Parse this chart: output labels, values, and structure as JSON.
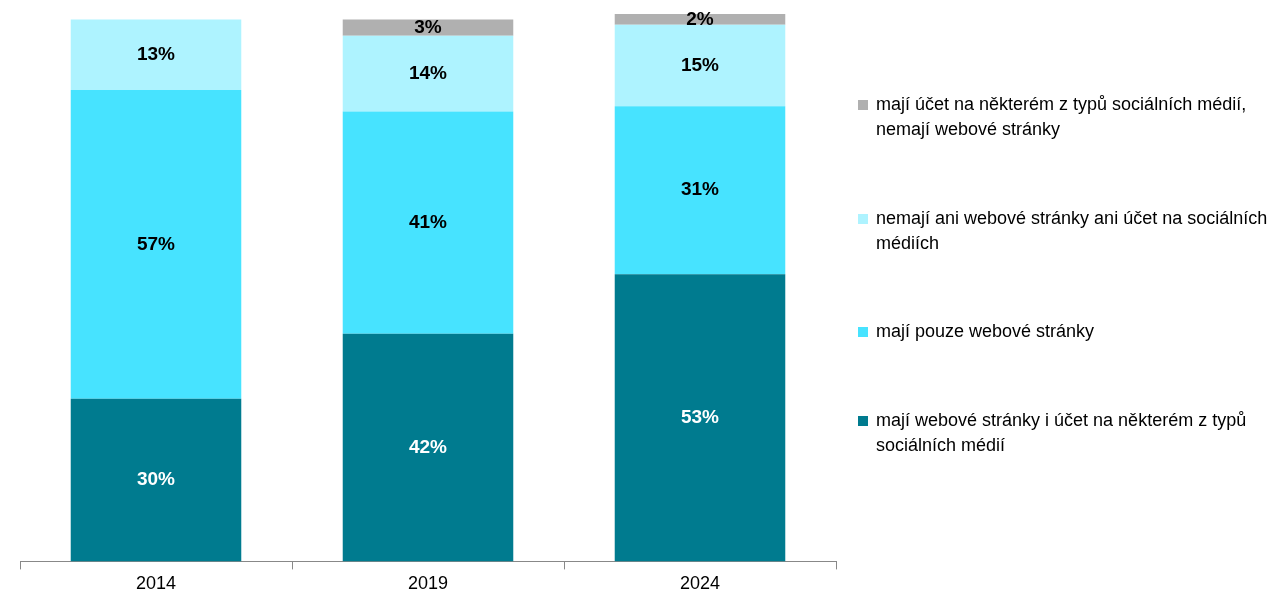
{
  "chart_data": {
    "type": "bar",
    "stacked": true,
    "relative": false,
    "categories": [
      "2014",
      "2019",
      "2024"
    ],
    "ylim": [
      0,
      101
    ],
    "legend": "right",
    "grid": false,
    "series": [
      {
        "name": "mají webové stránky i účet na některém z typů sociálních médií",
        "color": "#007b8f",
        "values": [
          30,
          42,
          53
        ],
        "value_labels": [
          "30%",
          "42%",
          "53%"
        ]
      },
      {
        "name": "mají pouze webové stránky",
        "color": "#47e3ff",
        "values": [
          57,
          41,
          31
        ],
        "value_labels": [
          "57%",
          "41%",
          "31%"
        ]
      },
      {
        "name": "nemají ani webové stránky ani účet na sociálních médiích",
        "color": "#aef3ff",
        "values": [
          13,
          14,
          15
        ],
        "value_labels": [
          "13%",
          "14%",
          "15%"
        ]
      },
      {
        "name": "mají účet na některém z typů sociálních médií, nemají webové stránky",
        "color": "#b0b0b0",
        "values": [
          null,
          3,
          2
        ],
        "value_labels": [
          null,
          "3%",
          "2%"
        ]
      }
    ]
  }
}
